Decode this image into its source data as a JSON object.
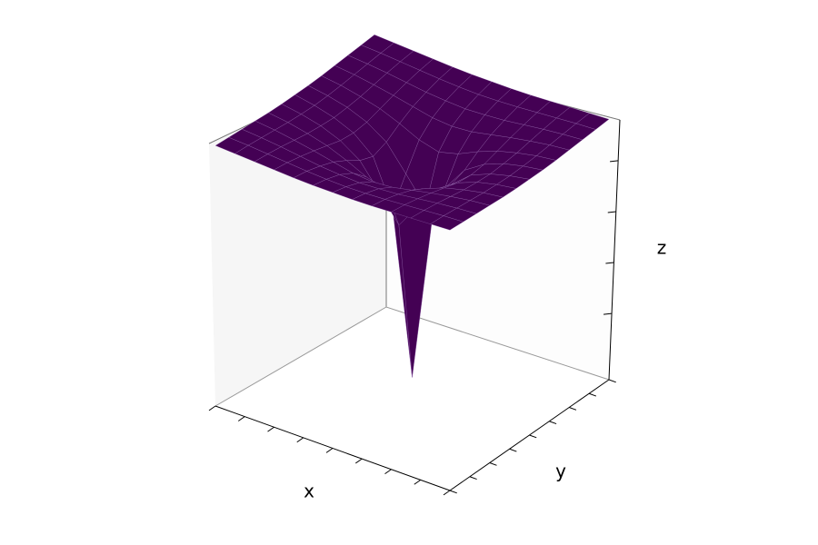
{
  "chart_data": {
    "type": "surface",
    "x_label": "x",
    "y_label": "y",
    "z_label": "z",
    "x": [
      -3,
      -2.5,
      -2,
      -1.5,
      -1,
      -0.5,
      0,
      0.5,
      1,
      1.5,
      2,
      2.5,
      3
    ],
    "y": [
      -3,
      -2.5,
      -2,
      -1.5,
      -1,
      -0.5,
      0,
      0.5,
      1,
      1.5,
      2,
      2.5,
      3
    ],
    "z": [
      [
        -0.24,
        -0.26,
        -0.28,
        -0.3,
        -0.32,
        -0.33,
        -0.33,
        -0.33,
        -0.32,
        -0.3,
        -0.28,
        -0.26,
        -0.24
      ],
      [
        -0.26,
        -0.28,
        -0.31,
        -0.34,
        -0.37,
        -0.39,
        -0.4,
        -0.39,
        -0.37,
        -0.34,
        -0.31,
        -0.28,
        -0.26
      ],
      [
        -0.28,
        -0.31,
        -0.35,
        -0.4,
        -0.45,
        -0.48,
        -0.5,
        -0.48,
        -0.45,
        -0.4,
        -0.35,
        -0.31,
        -0.28
      ],
      [
        -0.3,
        -0.34,
        -0.4,
        -0.47,
        -0.55,
        -0.63,
        -0.66,
        -0.63,
        -0.55,
        -0.47,
        -0.4,
        -0.34,
        -0.3
      ],
      [
        -0.32,
        -0.37,
        -0.45,
        -0.55,
        -0.7,
        -0.88,
        -0.98,
        -0.88,
        -0.7,
        -0.55,
        -0.45,
        -0.37,
        -0.32
      ],
      [
        -0.33,
        -0.39,
        -0.48,
        -0.63,
        -0.88,
        -1.36,
        -1.86,
        -1.36,
        -0.88,
        -0.63,
        -0.48,
        -0.39,
        -0.33
      ],
      [
        -0.33,
        -0.4,
        -0.5,
        -0.66,
        -0.98,
        -1.86,
        -5,
        -1.86,
        -0.98,
        -0.66,
        -0.5,
        -0.4,
        -0.33
      ],
      [
        -0.33,
        -0.39,
        -0.48,
        -0.63,
        -0.88,
        -1.36,
        -1.86,
        -1.36,
        -0.88,
        -0.63,
        -0.48,
        -0.39,
        -0.33
      ],
      [
        -0.32,
        -0.37,
        -0.45,
        -0.55,
        -0.7,
        -0.88,
        -0.98,
        -0.88,
        -0.7,
        -0.55,
        -0.45,
        -0.37,
        -0.32
      ],
      [
        -0.3,
        -0.34,
        -0.4,
        -0.47,
        -0.55,
        -0.63,
        -0.66,
        -0.63,
        -0.55,
        -0.47,
        -0.4,
        -0.34,
        -0.3
      ],
      [
        -0.28,
        -0.31,
        -0.35,
        -0.4,
        -0.45,
        -0.48,
        -0.5,
        -0.48,
        -0.45,
        -0.4,
        -0.35,
        -0.31,
        -0.28
      ],
      [
        -0.26,
        -0.28,
        -0.31,
        -0.34,
        -0.37,
        -0.39,
        -0.4,
        -0.39,
        -0.37,
        -0.34,
        -0.31,
        -0.28,
        -0.26
      ],
      [
        -0.24,
        -0.26,
        -0.28,
        -0.3,
        -0.32,
        -0.33,
        -0.33,
        -0.33,
        -0.32,
        -0.3,
        -0.28,
        -0.26,
        -0.24
      ]
    ],
    "color": "#440154",
    "edge_color": "#9b6fb5",
    "xlim": [
      -3,
      3
    ],
    "ylim": [
      -3,
      3
    ],
    "zlim": [
      -5.3,
      -0.2
    ],
    "xticks": [
      -3,
      -2.25,
      -1.5,
      -0.75,
      0,
      0.75,
      1.5,
      2.25,
      3
    ],
    "yticks": [
      -3,
      -2.25,
      -1.5,
      -0.75,
      0,
      0.75,
      1.5,
      2.25,
      3
    ],
    "zticks": [
      -4,
      -3,
      -2,
      -1
    ]
  }
}
